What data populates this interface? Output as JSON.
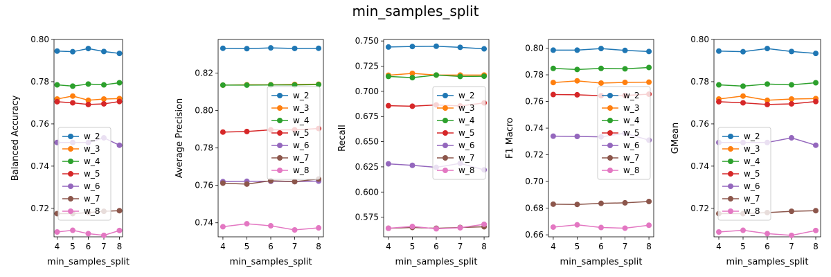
{
  "figure_title": "min_samples_split",
  "colors": {
    "w_2": "#1f77b4",
    "w_3": "#ff7f0e",
    "w_4": "#2ca02c",
    "w_5": "#d62728",
    "w_6": "#9467bd",
    "w_7": "#8c564b",
    "w_8": "#e377c2"
  },
  "chart_data": [
    {
      "type": "line",
      "title": "",
      "xlabel": "min_samples_split",
      "ylabel": "Balanced Accuracy",
      "x": [
        4,
        5,
        6,
        7,
        8
      ],
      "xticks": [
        "4",
        "5",
        "6",
        "7",
        "8"
      ],
      "ylim": [
        0.7065,
        0.8
      ],
      "yticks": [
        "0.72",
        "0.74",
        "0.76",
        "0.78",
        "0.80"
      ],
      "ytick_values": [
        0.72,
        0.74,
        0.76,
        0.78,
        0.8
      ],
      "grid": false,
      "legend": "center-left",
      "series": [
        {
          "name": "w_2",
          "values": [
            0.7945,
            0.7942,
            0.7957,
            0.7943,
            0.7934
          ]
        },
        {
          "name": "w_3",
          "values": [
            0.7718,
            0.7732,
            0.7712,
            0.7718,
            0.772
          ]
        },
        {
          "name": "w_4",
          "values": [
            0.7785,
            0.7779,
            0.7789,
            0.7785,
            0.7795
          ]
        },
        {
          "name": "w_5",
          "values": [
            0.7705,
            0.77,
            0.7692,
            0.7695,
            0.7706
          ]
        },
        {
          "name": "w_6",
          "values": [
            0.7512,
            0.7512,
            0.7512,
            0.7534,
            0.7499
          ]
        },
        {
          "name": "w_7",
          "values": [
            0.7175,
            0.7175,
            0.718,
            0.7186,
            0.7189
          ]
        },
        {
          "name": "w_8",
          "values": [
            0.7088,
            0.7096,
            0.708,
            0.7072,
            0.7095
          ]
        }
      ]
    },
    {
      "type": "line",
      "title": "",
      "xlabel": "min_samples_split",
      "ylabel": "Average Precision",
      "x": [
        4,
        5,
        6,
        7,
        8
      ],
      "xticks": [
        "4",
        "5",
        "6",
        "7",
        "8"
      ],
      "ylim": [
        0.7325,
        0.838
      ],
      "yticks": [
        "0.74",
        "0.76",
        "0.78",
        "0.80",
        "0.82"
      ],
      "ytick_values": [
        0.74,
        0.76,
        0.78,
        0.8,
        0.82
      ],
      "grid": false,
      "legend": "center-right",
      "series": [
        {
          "name": "w_2",
          "values": [
            0.8333,
            0.8331,
            0.8335,
            0.8332,
            0.8333
          ]
        },
        {
          "name": "w_3",
          "values": [
            0.8136,
            0.8138,
            0.8138,
            0.814,
            0.8141
          ]
        },
        {
          "name": "w_4",
          "values": [
            0.8136,
            0.8136,
            0.8137,
            0.8137,
            0.8139
          ]
        },
        {
          "name": "w_5",
          "values": [
            0.7885,
            0.7888,
            0.7897,
            0.7897,
            0.7904
          ]
        },
        {
          "name": "w_6",
          "values": [
            0.762,
            0.7622,
            0.7622,
            0.762,
            0.7623
          ]
        },
        {
          "name": "w_7",
          "values": [
            0.7612,
            0.7607,
            0.7625,
            0.762,
            0.7634
          ]
        },
        {
          "name": "w_8",
          "values": [
            0.7379,
            0.7395,
            0.7384,
            0.7362,
            0.7373
          ]
        }
      ]
    },
    {
      "type": "line",
      "title": "",
      "xlabel": "min_samples_split",
      "ylabel": "Recall",
      "x": [
        4,
        5,
        6,
        7,
        8
      ],
      "xticks": [
        "4",
        "5",
        "6",
        "7",
        "8"
      ],
      "ylim": [
        0.5555,
        0.7515
      ],
      "yticks": [
        "0.575",
        "0.600",
        "0.625",
        "0.650",
        "0.675",
        "0.700",
        "0.725",
        "0.750"
      ],
      "ytick_values": [
        0.575,
        0.6,
        0.625,
        0.65,
        0.675,
        0.7,
        0.725,
        0.75
      ],
      "grid": false,
      "legend": "center-right",
      "series": [
        {
          "name": "w_2",
          "values": [
            0.744,
            0.7445,
            0.7448,
            0.7437,
            0.7422
          ]
        },
        {
          "name": "w_3",
          "values": [
            0.716,
            0.7178,
            0.7162,
            0.7162,
            0.7162
          ]
        },
        {
          "name": "w_4",
          "values": [
            0.7148,
            0.7136,
            0.7162,
            0.7148,
            0.715
          ]
        },
        {
          "name": "w_5",
          "values": [
            0.6857,
            0.6852,
            0.6865,
            0.6855,
            0.6885
          ]
        },
        {
          "name": "w_6",
          "values": [
            0.628,
            0.6265,
            0.6245,
            0.6285,
            0.622
          ]
        },
        {
          "name": "w_7",
          "values": [
            0.564,
            0.5648,
            0.564,
            0.5648,
            0.5655
          ]
        },
        {
          "name": "w_8",
          "values": [
            0.564,
            0.5658,
            0.5635,
            0.5645,
            0.568
          ]
        }
      ]
    },
    {
      "type": "line",
      "title": "",
      "xlabel": "min_samples_split",
      "ylabel": "F1 Macro",
      "x": [
        4,
        5,
        6,
        7,
        8
      ],
      "xticks": [
        "4",
        "5",
        "6",
        "7",
        "8"
      ],
      "ylim": [
        0.6585,
        0.8065
      ],
      "yticks": [
        "0.66",
        "0.68",
        "0.70",
        "0.72",
        "0.74",
        "0.76",
        "0.78",
        "0.80"
      ],
      "ytick_values": [
        0.66,
        0.68,
        0.7,
        0.72,
        0.74,
        0.76,
        0.78,
        0.8
      ],
      "grid": false,
      "legend": "center-right",
      "series": [
        {
          "name": "w_2",
          "values": [
            0.7985,
            0.7985,
            0.7997,
            0.7983,
            0.7975
          ]
        },
        {
          "name": "w_3",
          "values": [
            0.7742,
            0.7755,
            0.7738,
            0.7743,
            0.7745
          ]
        },
        {
          "name": "w_4",
          "values": [
            0.7848,
            0.784,
            0.7848,
            0.7845,
            0.7855
          ]
        },
        {
          "name": "w_5",
          "values": [
            0.7652,
            0.765,
            0.7643,
            0.7645,
            0.7655
          ]
        },
        {
          "name": "w_6",
          "values": [
            0.734,
            0.7338,
            0.7335,
            0.7362,
            0.731
          ]
        },
        {
          "name": "w_7",
          "values": [
            0.683,
            0.6828,
            0.6836,
            0.684,
            0.685
          ]
        },
        {
          "name": "w_8",
          "values": [
            0.6658,
            0.6675,
            0.6655,
            0.665,
            0.6672
          ]
        }
      ]
    },
    {
      "type": "line",
      "title": "",
      "xlabel": "min_samples_split",
      "ylabel": "GMean",
      "x": [
        4,
        5,
        6,
        7,
        8
      ],
      "xticks": [
        "4",
        "5",
        "6",
        "7",
        "8"
      ],
      "ylim": [
        0.7065,
        0.8
      ],
      "yticks": [
        "0.72",
        "0.74",
        "0.76",
        "0.78",
        "0.80"
      ],
      "ytick_values": [
        0.72,
        0.74,
        0.76,
        0.78,
        0.8
      ],
      "grid": false,
      "legend": "center-left",
      "series": [
        {
          "name": "w_2",
          "values": [
            0.7945,
            0.7942,
            0.7957,
            0.7943,
            0.7934
          ]
        },
        {
          "name": "w_3",
          "values": [
            0.7718,
            0.7732,
            0.7712,
            0.7718,
            0.772
          ]
        },
        {
          "name": "w_4",
          "values": [
            0.7785,
            0.7779,
            0.7789,
            0.7785,
            0.7795
          ]
        },
        {
          "name": "w_5",
          "values": [
            0.7705,
            0.77,
            0.7692,
            0.7695,
            0.7706
          ]
        },
        {
          "name": "w_6",
          "values": [
            0.7512,
            0.7512,
            0.7512,
            0.7534,
            0.7499
          ]
        },
        {
          "name": "w_7",
          "values": [
            0.7175,
            0.7175,
            0.718,
            0.7186,
            0.7189
          ]
        },
        {
          "name": "w_8",
          "values": [
            0.7088,
            0.7096,
            0.708,
            0.7072,
            0.7095
          ]
        }
      ]
    }
  ]
}
